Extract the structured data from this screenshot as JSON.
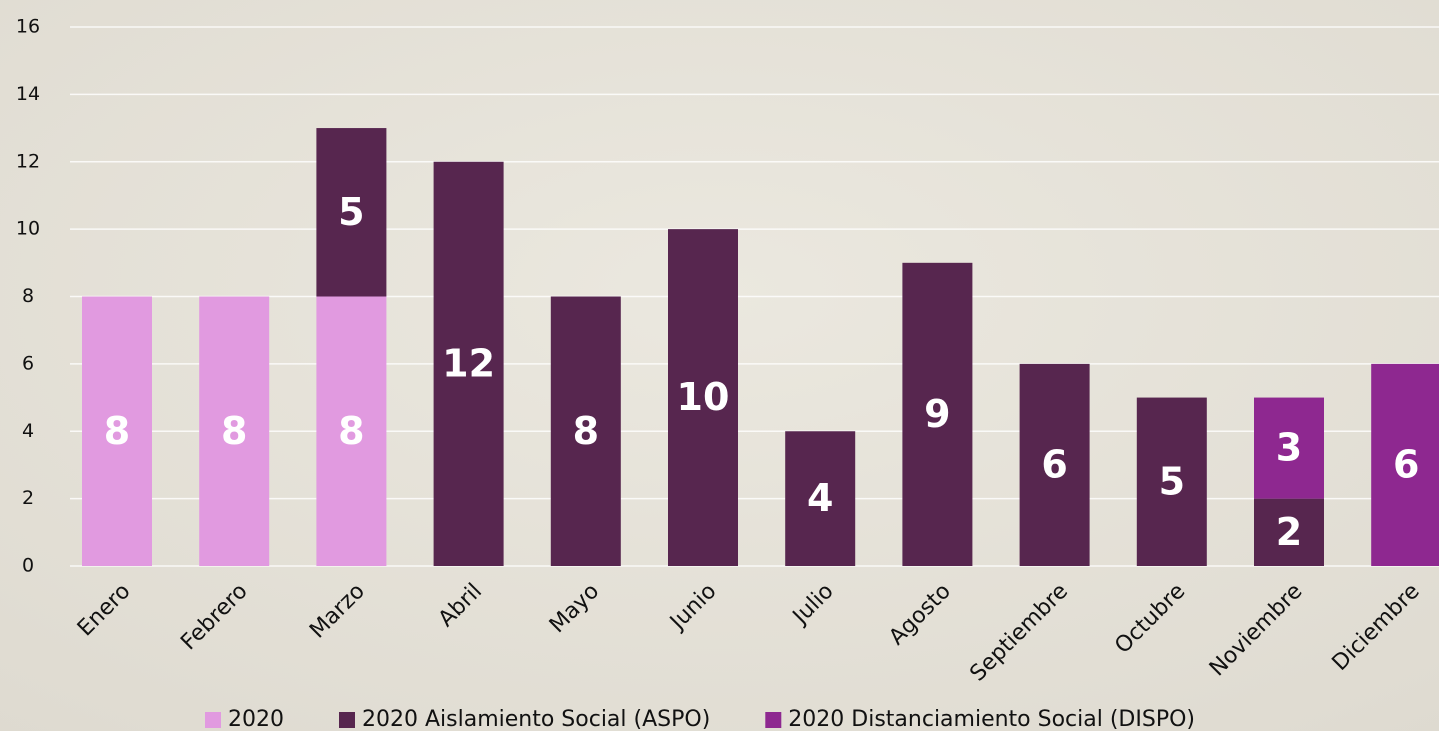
{
  "chart_data": {
    "type": "stacked_bar",
    "categories": [
      "Enero",
      "Febrero",
      "Marzo",
      "Abril",
      "Mayo",
      "Junio",
      "Julio",
      "Agosto",
      "Septiembre",
      "Octubre",
      "Noviembre",
      "Diciembre"
    ],
    "series": [
      {
        "name": "2020",
        "color": "#e19ae0",
        "values": [
          8,
          8,
          8,
          null,
          null,
          null,
          null,
          null,
          null,
          null,
          null,
          null
        ]
      },
      {
        "name": "2020 Aislamiento Social (ASPO)",
        "color": "#57264f",
        "values": [
          null,
          null,
          5,
          12,
          8,
          10,
          4,
          9,
          6,
          5,
          2,
          null
        ]
      },
      {
        "name": "2020 Distanciamiento Social (DISPO)",
        "color": "#8e2890",
        "values": [
          null,
          null,
          null,
          null,
          null,
          null,
          null,
          null,
          null,
          null,
          3,
          6
        ]
      }
    ],
    "ylim": [
      0,
      16
    ],
    "yticks": [
      0,
      2,
      4,
      6,
      8,
      10,
      12,
      14,
      16
    ],
    "grid": true,
    "legend": "bottom"
  }
}
